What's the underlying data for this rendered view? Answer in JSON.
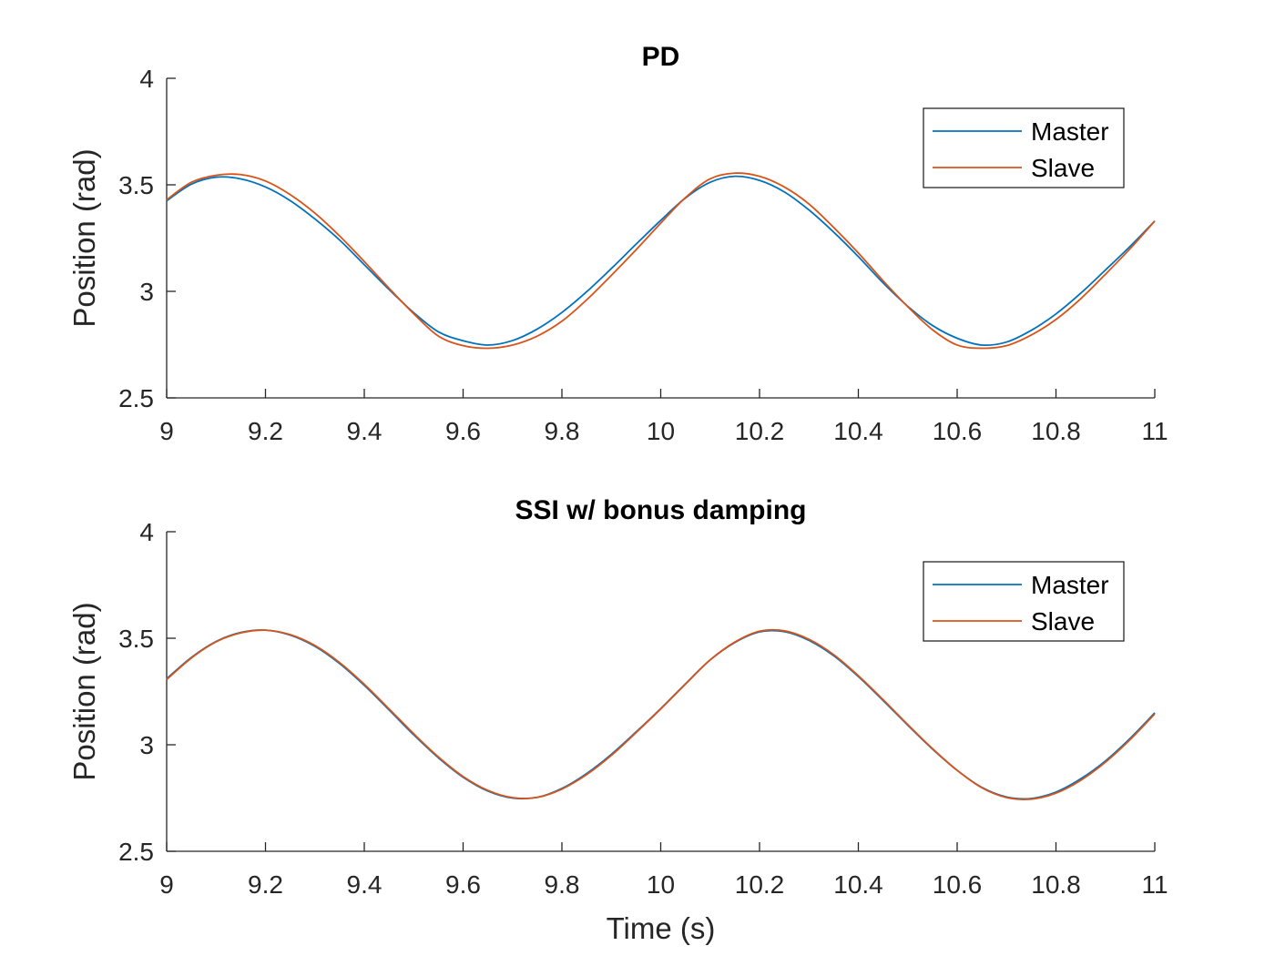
{
  "chart_data": [
    {
      "type": "line",
      "title": "PD",
      "xlabel": "",
      "ylabel": "Position (rad)",
      "xlim": [
        9,
        11
      ],
      "ylim": [
        2.5,
        4
      ],
      "xticks": [
        "9",
        "9.2",
        "9.4",
        "9.6",
        "9.8",
        "10",
        "10.2",
        "10.4",
        "10.6",
        "10.8",
        "11"
      ],
      "yticks": [
        "2.5",
        "3",
        "3.5",
        "4"
      ],
      "grid": false,
      "legend": "top-right",
      "x": [
        9.0,
        9.05,
        9.1,
        9.15,
        9.2,
        9.25,
        9.3,
        9.35,
        9.4,
        9.45,
        9.5,
        9.55,
        9.6,
        9.65,
        9.7,
        9.75,
        9.8,
        9.85,
        9.9,
        9.95,
        10.0,
        10.05,
        10.1,
        10.15,
        10.2,
        10.25,
        10.3,
        10.35,
        10.4,
        10.45,
        10.5,
        10.55,
        10.6,
        10.65,
        10.7,
        10.75,
        10.8,
        10.85,
        10.9,
        10.95,
        11.0
      ],
      "series": [
        {
          "name": "Master",
          "color": "#0072BD",
          "values": [
            3.425,
            3.503,
            3.536,
            3.528,
            3.49,
            3.426,
            3.34,
            3.241,
            3.125,
            3.009,
            2.9,
            2.81,
            2.768,
            2.748,
            2.769,
            2.823,
            2.901,
            2.998,
            3.107,
            3.221,
            3.333,
            3.438,
            3.512,
            3.54,
            3.521,
            3.467,
            3.382,
            3.278,
            3.163,
            3.04,
            2.93,
            2.84,
            2.78,
            2.748,
            2.762,
            2.817,
            2.894,
            2.991,
            3.1,
            3.211,
            3.33
          ]
        },
        {
          "name": "Slave",
          "color": "#D95319",
          "values": [
            3.43,
            3.512,
            3.545,
            3.548,
            3.518,
            3.454,
            3.367,
            3.26,
            3.14,
            3.015,
            2.895,
            2.79,
            2.745,
            2.733,
            2.748,
            2.79,
            2.86,
            2.96,
            3.075,
            3.195,
            3.32,
            3.44,
            3.528,
            3.555,
            3.54,
            3.49,
            3.41,
            3.3,
            3.18,
            3.05,
            2.928,
            2.82,
            2.748,
            2.733,
            2.745,
            2.795,
            2.868,
            2.965,
            3.08,
            3.2,
            3.33
          ]
        }
      ]
    },
    {
      "type": "line",
      "title": "SSI w/ bonus damping",
      "xlabel": "Time (s)",
      "ylabel": "Position (rad)",
      "xlim": [
        9,
        11
      ],
      "ylim": [
        2.5,
        4
      ],
      "xticks": [
        "9",
        "9.2",
        "9.4",
        "9.6",
        "9.8",
        "10",
        "10.2",
        "10.4",
        "10.6",
        "10.8",
        "11"
      ],
      "yticks": [
        "2.5",
        "3",
        "3.5",
        "4"
      ],
      "grid": false,
      "legend": "top-right",
      "x": [
        9.0,
        9.05,
        9.1,
        9.15,
        9.2,
        9.25,
        9.3,
        9.35,
        9.4,
        9.45,
        9.5,
        9.55,
        9.6,
        9.65,
        9.7,
        9.75,
        9.8,
        9.85,
        9.9,
        9.95,
        10.0,
        10.05,
        10.1,
        10.15,
        10.2,
        10.25,
        10.3,
        10.35,
        10.4,
        10.45,
        10.5,
        10.55,
        10.6,
        10.65,
        10.7,
        10.75,
        10.8,
        10.85,
        10.9,
        10.95,
        11.0
      ],
      "series": [
        {
          "name": "Master",
          "color": "#0072BD",
          "values": [
            3.31,
            3.41,
            3.485,
            3.527,
            3.538,
            3.515,
            3.462,
            3.381,
            3.279,
            3.164,
            3.047,
            2.939,
            2.848,
            2.783,
            2.75,
            2.753,
            2.795,
            2.865,
            2.955,
            3.06,
            3.17,
            3.286,
            3.398,
            3.48,
            3.53,
            3.531,
            3.49,
            3.418,
            3.32,
            3.208,
            3.092,
            2.98,
            2.88,
            2.8,
            2.755,
            2.748,
            2.778,
            2.84,
            2.924,
            3.03,
            3.15
          ]
        },
        {
          "name": "Slave",
          "color": "#D95319",
          "values": [
            3.306,
            3.407,
            3.483,
            3.525,
            3.538,
            3.517,
            3.466,
            3.386,
            3.284,
            3.169,
            3.052,
            2.943,
            2.851,
            2.786,
            2.752,
            2.753,
            2.792,
            2.86,
            2.95,
            3.057,
            3.168,
            3.284,
            3.398,
            3.482,
            3.533,
            3.535,
            3.495,
            3.423,
            3.324,
            3.212,
            3.095,
            2.982,
            2.88,
            2.798,
            2.752,
            2.745,
            2.773,
            2.833,
            2.918,
            3.024,
            3.145
          ]
        }
      ]
    }
  ]
}
